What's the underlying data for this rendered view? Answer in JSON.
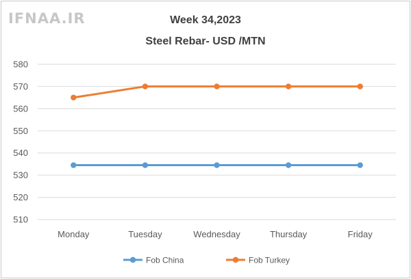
{
  "watermark": "IFNAA.IR",
  "chart_data": {
    "type": "line",
    "title": "Week 34,2023",
    "subtitle": "Steel Rebar- USD /MTN",
    "categories": [
      "Monday",
      "Tuesday",
      "Wednesday",
      "Thursday",
      "Friday"
    ],
    "ylim": [
      510,
      580
    ],
    "yticks": [
      510,
      520,
      530,
      540,
      550,
      560,
      570,
      580
    ],
    "grid": true,
    "legend_position": "bottom",
    "series": [
      {
        "name": "Fob China",
        "color": "#5b9bd5",
        "values": [
          534.5,
          534.5,
          534.5,
          534.5,
          534.5
        ]
      },
      {
        "name": "Fob Turkey",
        "color": "#ed7d31",
        "values": [
          565,
          570,
          570,
          570,
          570
        ]
      }
    ]
  }
}
